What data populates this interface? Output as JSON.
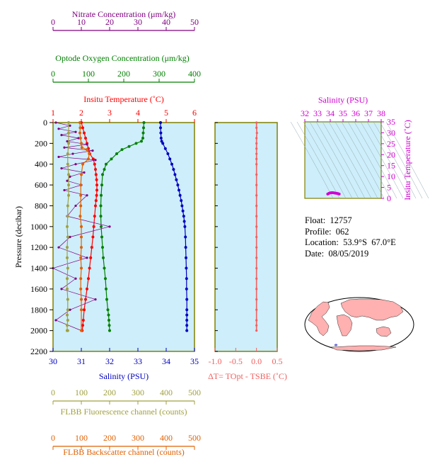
{
  "float_info": {
    "float": "Float:  12757",
    "profile": "Profile:  062",
    "location": "Location:  53.9°S  67.0°E",
    "date": "Date:  08/05/2019"
  },
  "colors": {
    "panel_bg": "#cdeefa",
    "axis": "#808000",
    "temperature": "#ff0000",
    "salinity": "#0000c0",
    "oxygen": "#008000",
    "nitrate": "#800080",
    "fluorescence": "#a0a040",
    "backscatter": "#e06000",
    "delta_t": "#f06060",
    "ts_axis": "#d000d0",
    "land": "#ffb0b0"
  },
  "chart_data": [
    {
      "type": "line",
      "title": "",
      "ylabel": "Pressure (decibar)",
      "ylim": [
        2200,
        0
      ],
      "yticks": [
        0,
        200,
        400,
        600,
        800,
        1000,
        1200,
        1400,
        1600,
        1800,
        2000,
        2200
      ],
      "grid": false,
      "axes": {
        "nitrate": {
          "label": "Nitrate Concentration (μm/kg)",
          "range": [
            0,
            50
          ],
          "ticks": [
            0,
            10,
            20,
            30,
            40,
            50
          ]
        },
        "oxygen": {
          "label": "Optode Oxygen Concentration (μm/kg)",
          "range": [
            0,
            400
          ],
          "ticks": [
            0,
            100,
            200,
            300,
            400
          ]
        },
        "temperature": {
          "label": "Insitu Temperature (˚C)",
          "range": [
            1,
            6
          ],
          "ticks": [
            1,
            2,
            3,
            4,
            5,
            6
          ]
        },
        "salinity": {
          "label": "Salinity (PSU)",
          "range": [
            30,
            35
          ],
          "ticks": [
            30,
            31,
            32,
            33,
            34,
            35
          ]
        },
        "fluorescence": {
          "label": "FLBB Fluorescence channel (counts)",
          "range": [
            0,
            500
          ],
          "ticks": [
            0,
            100,
            200,
            300,
            400,
            500
          ]
        },
        "backscatter": {
          "label": "FLBB Backscatter channel (counts)",
          "range": [
            0,
            500
          ],
          "ticks": [
            0,
            100,
            200,
            300,
            400,
            500
          ]
        }
      },
      "series": [
        {
          "name": "Salinity (PSU)",
          "axis": "salinity",
          "x": [
            33.8,
            33.8,
            33.81,
            33.82,
            33.84,
            33.88,
            33.97,
            34.06,
            34.13,
            34.2,
            34.26,
            34.31,
            34.36,
            34.41,
            34.45,
            34.49,
            34.53,
            34.56,
            34.59,
            34.62,
            34.64,
            34.66,
            34.68,
            34.69,
            34.7,
            34.71,
            34.72,
            34.72,
            34.73,
            34.73,
            34.73,
            34.73,
            34.73,
            34.73
          ],
          "y": [
            0,
            50,
            100,
            150,
            180,
            200,
            250,
            300,
            350,
            400,
            450,
            500,
            550,
            600,
            650,
            700,
            750,
            800,
            850,
            900,
            950,
            1000,
            1100,
            1200,
            1300,
            1400,
            1500,
            1600,
            1700,
            1800,
            1850,
            1900,
            1950,
            2000
          ]
        },
        {
          "name": "Insitu Temperature (˚C)",
          "axis": "temperature",
          "x": [
            2.0,
            2.05,
            2.1,
            2.15,
            2.2,
            2.25,
            2.3,
            2.42,
            2.47,
            2.5,
            2.52,
            2.54,
            2.55,
            2.55,
            2.54,
            2.52,
            2.5,
            2.47,
            2.44,
            2.41,
            2.37,
            2.33,
            2.29,
            2.25,
            2.2,
            2.15,
            2.1,
            2.07,
            2.05,
            2.03,
            2.02
          ],
          "y": [
            0,
            50,
            100,
            150,
            200,
            250,
            300,
            350,
            400,
            450,
            500,
            550,
            600,
            650,
            700,
            750,
            800,
            900,
            1000,
            1100,
            1200,
            1300,
            1400,
            1500,
            1600,
            1700,
            1800,
            1900,
            1950,
            2000,
            2000
          ]
        },
        {
          "name": "Optode Oxygen Concentration (μm/kg)",
          "axis": "oxygen",
          "x": [
            257,
            256,
            255,
            254,
            250,
            235,
            215,
            195,
            180,
            165,
            150,
            145,
            140,
            138,
            136,
            135,
            135,
            136,
            138,
            140,
            142,
            145,
            148,
            150,
            152,
            155,
            157,
            158,
            159,
            160
          ],
          "y": [
            0,
            50,
            100,
            150,
            180,
            200,
            230,
            260,
            300,
            350,
            400,
            450,
            500,
            600,
            700,
            800,
            900,
            1000,
            1100,
            1200,
            1300,
            1400,
            1500,
            1600,
            1700,
            1800,
            1850,
            1900,
            1950,
            2000
          ]
        },
        {
          "name": "Nitrate Concentration (μm/kg)",
          "axis": "nitrate",
          "x": [
            1,
            6,
            2,
            8,
            3,
            9,
            5,
            12,
            4,
            14,
            7,
            2,
            15,
            8,
            3,
            11,
            6,
            5,
            10,
            4,
            12,
            8,
            5,
            20,
            6,
            2,
            12,
            0,
            8,
            3,
            15,
            6,
            1,
            10
          ],
          "y": [
            0,
            30,
            60,
            90,
            120,
            150,
            180,
            210,
            240,
            270,
            300,
            330,
            360,
            400,
            440,
            480,
            520,
            560,
            600,
            650,
            700,
            800,
            900,
            1000,
            1100,
            1200,
            1300,
            1400,
            1500,
            1600,
            1700,
            1800,
            1900,
            2000
          ]
        },
        {
          "name": "FLBB Fluorescence channel (counts)",
          "axis": "fluorescence",
          "x": [
            55,
            55,
            55,
            52,
            52,
            55,
            55,
            55,
            52,
            52,
            50,
            52,
            50,
            50,
            52,
            50,
            50,
            52,
            52,
            50,
            52,
            50,
            50,
            52,
            50
          ],
          "y": [
            0,
            100,
            200,
            300,
            400,
            500,
            600,
            700,
            800,
            900,
            1000,
            1100,
            1200,
            1300,
            1400,
            1500,
            1600,
            1700,
            1800,
            1850,
            1900,
            1950,
            2000,
            2000,
            2000
          ]
        },
        {
          "name": "FLBB Backscatter channel (counts)",
          "axis": "backscatter",
          "x": [
            95,
            96,
            95,
            97,
            100,
            102,
            120,
            128,
            125,
            105,
            100,
            98,
            98,
            98,
            96,
            100,
            100,
            100,
            98,
            100,
            98,
            98,
            100,
            100,
            100
          ],
          "y": [
            0,
            50,
            100,
            150,
            200,
            240,
            260,
            300,
            350,
            400,
            500,
            600,
            700,
            800,
            900,
            1000,
            1100,
            1200,
            1300,
            1400,
            1500,
            1600,
            1700,
            1800,
            2000
          ]
        }
      ]
    },
    {
      "type": "line",
      "title": "",
      "xlabel": "ΔT= TOpt - TSBE (˚C)",
      "xlim": [
        -1.0,
        0.5
      ],
      "xticks": [
        -1.0,
        -0.5,
        0.0,
        0.5
      ],
      "ylim": [
        2200,
        0
      ],
      "series": [
        {
          "x": [
            0.0,
            0.0,
            0.01,
            0.0,
            0.0,
            0.0,
            0.0,
            0.0,
            0.0,
            0.0,
            0.0,
            0.0,
            0.0,
            0.0,
            0.0,
            0.0,
            0.0,
            0.0,
            0.0,
            0.0,
            0.0,
            0.0,
            0.0,
            0.0,
            0.0,
            0.0
          ],
          "y": [
            0,
            50,
            100,
            150,
            200,
            250,
            300,
            350,
            400,
            500,
            600,
            700,
            800,
            900,
            1000,
            1100,
            1200,
            1300,
            1400,
            1500,
            1600,
            1700,
            1800,
            1900,
            1950,
            2000
          ]
        }
      ]
    },
    {
      "type": "scatter",
      "title": "",
      "xlabel": "Salinity (PSU)",
      "ylabel": "Insitu Temperature (˚C)",
      "xlim": [
        32,
        38
      ],
      "ylim": [
        0,
        35
      ],
      "xticks": [
        32,
        33,
        34,
        35,
        36,
        37,
        38
      ],
      "yticks": [
        0,
        5,
        10,
        15,
        20,
        25,
        30,
        35
      ],
      "series": [
        {
          "x": [
            33.8,
            33.9,
            34.0,
            34.1,
            34.2,
            34.3,
            34.4,
            34.5,
            34.6,
            34.7
          ],
          "y": [
            2.0,
            2.3,
            2.5,
            2.6,
            2.6,
            2.5,
            2.4,
            2.3,
            2.2,
            2.0
          ]
        }
      ]
    }
  ]
}
